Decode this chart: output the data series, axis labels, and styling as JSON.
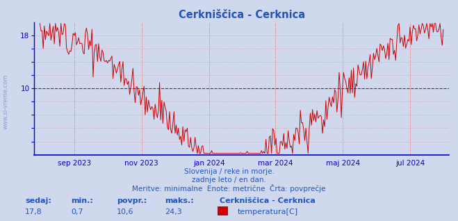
{
  "title": "Cerkniščica - Cerknica",
  "title_color": "#2255bb",
  "bg_color": "#d0d8ee",
  "plot_bg_color": "#d0d8ee",
  "line_color": "#cc0000",
  "axis_color": "#0000cc",
  "grid_color": "#cc9999",
  "hline_color": "#cc0000",
  "hline_y": 10,
  "vline_color": "#ee9999",
  "ylim": [
    0,
    20
  ],
  "yticks": [
    2,
    4,
    6,
    8,
    10,
    12,
    14,
    16,
    18
  ],
  "ylabel_shown": [
    18,
    10
  ],
  "vline_positions": [
    31,
    92,
    153,
    213,
    274,
    335
  ],
  "xticklabels": [
    "sep 2023",
    "nov 2023",
    "jan 2024",
    "mar 2024",
    "maj 2024",
    "jul 2024"
  ],
  "subtitle1": "Slovenija / reke in morje.",
  "subtitle2": "zadnje leto / en dan.",
  "subtitle3": "Meritve: minimalne  Enote: metrične  Črta: povprečje",
  "subtitle_color": "#2255bb",
  "legend_title": "Cerkniščica - Cerknica",
  "legend_label": "temperatura[C]",
  "legend_color": "#cc0000",
  "stats_sedaj": "17,8",
  "stats_min": "0,7",
  "stats_povpr": "10,6",
  "stats_maks": "24,3",
  "stats_color": "#2255bb",
  "side_text": "www.si-vreme.com",
  "side_text_color": "#7799cc"
}
